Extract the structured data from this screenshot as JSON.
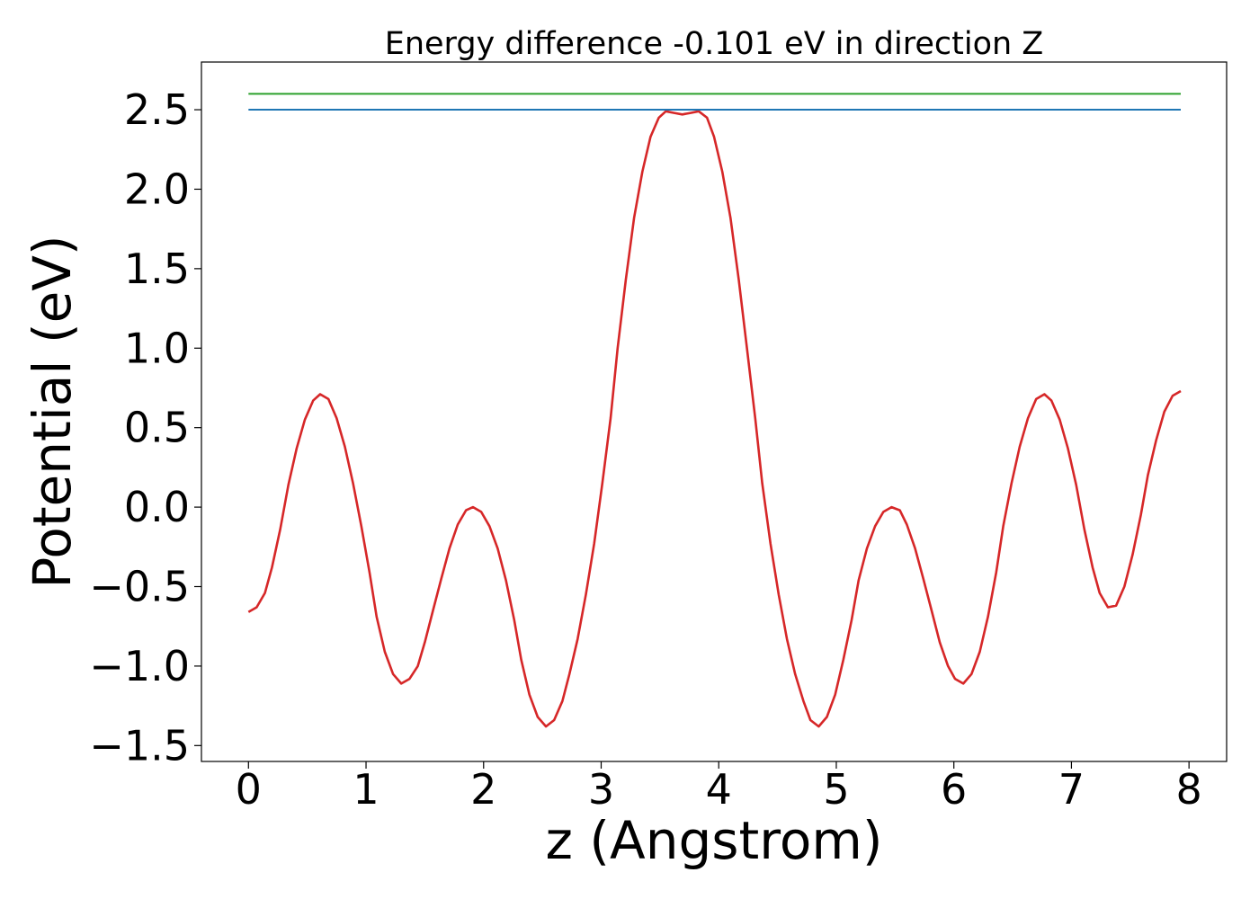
{
  "chart_data": {
    "type": "line",
    "title": "Energy difference -0.101 eV in direction Z",
    "xlabel": "z (Angstrom)",
    "ylabel": "Potential (eV)",
    "xlim": [
      -0.4,
      8.32
    ],
    "ylim": [
      -1.6,
      2.8
    ],
    "xticks": [
      0,
      1,
      2,
      3,
      4,
      5,
      6,
      7,
      8
    ],
    "yticks": [
      -1.5,
      -1.0,
      -0.5,
      0.0,
      0.5,
      1.0,
      1.5,
      2.0,
      2.5
    ],
    "ytick_labels": [
      "−1.5",
      "−1.0",
      "−0.5",
      "0.0",
      "0.5",
      "1.0",
      "1.5",
      "2.0",
      "2.5"
    ],
    "grid": false,
    "series": [
      {
        "color": "#d62728",
        "x": [
          0.0,
          0.07,
          0.14,
          0.2,
          0.27,
          0.34,
          0.41,
          0.48,
          0.55,
          0.61,
          0.68,
          0.75,
          0.82,
          0.89,
          0.96,
          1.03,
          1.09,
          1.16,
          1.23,
          1.3,
          1.37,
          1.44,
          1.5,
          1.57,
          1.64,
          1.71,
          1.78,
          1.85,
          1.91,
          1.98,
          2.05,
          2.12,
          2.19,
          2.26,
          2.32,
          2.39,
          2.46,
          2.53,
          2.6,
          2.67,
          2.73,
          2.8,
          2.87,
          2.94,
          3.01,
          3.08,
          3.14,
          3.21,
          3.28,
          3.35,
          3.42,
          3.49,
          3.55,
          3.62,
          3.69,
          3.76,
          3.83,
          3.9,
          3.96,
          4.03,
          4.1,
          4.17,
          4.24,
          4.31,
          4.37,
          4.44,
          4.51,
          4.58,
          4.65,
          4.72,
          4.78,
          4.85,
          4.92,
          4.99,
          5.06,
          5.13,
          5.19,
          5.26,
          5.33,
          5.4,
          5.47,
          5.54,
          5.6,
          5.67,
          5.74,
          5.81,
          5.88,
          5.95,
          6.01,
          6.08,
          6.15,
          6.22,
          6.29,
          6.36,
          6.42,
          6.49,
          6.56,
          6.63,
          6.7,
          6.77,
          6.83,
          6.9,
          6.97,
          7.04,
          7.11,
          7.18,
          7.24,
          7.31,
          7.38,
          7.45,
          7.52,
          7.59,
          7.65,
          7.72,
          7.79,
          7.86,
          7.93
        ],
        "y": [
          -0.66,
          -0.63,
          -0.54,
          -0.38,
          -0.14,
          0.14,
          0.37,
          0.55,
          0.67,
          0.71,
          0.68,
          0.56,
          0.38,
          0.15,
          -0.12,
          -0.41,
          -0.69,
          -0.91,
          -1.05,
          -1.11,
          -1.08,
          -1.0,
          -0.85,
          -0.65,
          -0.45,
          -0.26,
          -0.11,
          -0.02,
          0.0,
          -0.03,
          -0.12,
          -0.26,
          -0.46,
          -0.71,
          -0.96,
          -1.18,
          -1.32,
          -1.38,
          -1.34,
          -1.22,
          -1.05,
          -0.83,
          -0.55,
          -0.23,
          0.15,
          0.56,
          1.0,
          1.43,
          1.82,
          2.11,
          2.33,
          2.45,
          2.49,
          2.48,
          2.47,
          2.48,
          2.49,
          2.45,
          2.33,
          2.11,
          1.82,
          1.43,
          1.0,
          0.56,
          0.15,
          -0.23,
          -0.55,
          -0.83,
          -1.05,
          -1.22,
          -1.34,
          -1.38,
          -1.32,
          -1.18,
          -0.96,
          -0.71,
          -0.46,
          -0.26,
          -0.12,
          -0.03,
          0.0,
          -0.02,
          -0.11,
          -0.26,
          -0.45,
          -0.65,
          -0.85,
          -1.0,
          -1.08,
          -1.11,
          -1.05,
          -0.91,
          -0.69,
          -0.41,
          -0.12,
          0.15,
          0.38,
          0.56,
          0.68,
          0.71,
          0.67,
          0.55,
          0.37,
          0.14,
          -0.14,
          -0.38,
          -0.54,
          -0.63,
          -0.62,
          -0.5,
          -0.3,
          -0.05,
          0.2,
          0.42,
          0.6,
          0.7,
          0.73
        ]
      },
      {
        "color": "#1f77b4",
        "x": [
          0.0,
          7.93
        ],
        "y": [
          2.5,
          2.5
        ]
      },
      {
        "color": "#2ca02c",
        "x": [
          0.0,
          7.93
        ],
        "y": [
          2.6,
          2.6
        ]
      }
    ]
  }
}
